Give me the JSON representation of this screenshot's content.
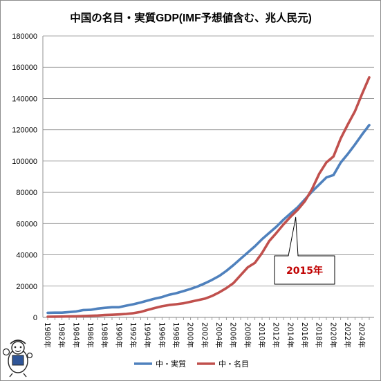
{
  "chart_data": {
    "type": "line",
    "title": "中国の名目・実質GDP(IMF予想値含む、兆人民元)",
    "xlabel": "",
    "ylabel": "",
    "ylim": [
      0,
      180000
    ],
    "yticks": [
      0,
      20000,
      40000,
      60000,
      80000,
      100000,
      120000,
      140000,
      160000,
      180000
    ],
    "ytick_labels": [
      "0",
      "20000",
      "40000",
      "60000",
      "80000",
      "100000",
      "120000",
      "140000",
      "160000",
      "180000"
    ],
    "x": [
      1980,
      1981,
      1982,
      1983,
      1984,
      1985,
      1986,
      1987,
      1988,
      1989,
      1990,
      1991,
      1992,
      1993,
      1994,
      1995,
      1996,
      1997,
      1998,
      1999,
      2000,
      2001,
      2002,
      2003,
      2004,
      2005,
      2006,
      2007,
      2008,
      2009,
      2010,
      2011,
      2012,
      2013,
      2014,
      2015,
      2016,
      2017,
      2018,
      2019,
      2020,
      2021,
      2022,
      2023,
      2024,
      2025
    ],
    "x_tick_labels": [
      "1980年",
      "1982年",
      "1984年",
      "1986年",
      "1988年",
      "1990年",
      "1992年",
      "1994年",
      "1996年",
      "1998年",
      "2000年",
      "2002年",
      "2004年",
      "2006年",
      "2008年",
      "2010年",
      "2012年",
      "2014年",
      "2016年",
      "2018年",
      "2020年",
      "2022年",
      "2024年"
    ],
    "x_tick_years": [
      1980,
      1982,
      1984,
      1986,
      1988,
      1990,
      1992,
      1994,
      1996,
      1998,
      2000,
      2002,
      2004,
      2006,
      2008,
      2010,
      2012,
      2014,
      2016,
      2018,
      2020,
      2022,
      2024
    ],
    "grid": "horizontal",
    "legend": "bottom",
    "series": [
      {
        "name": "中・実質",
        "color": "#4f81bd",
        "values": [
          2900,
          3000,
          3000,
          3400,
          3800,
          4700,
          4800,
          5600,
          6100,
          6500,
          6500,
          7500,
          8400,
          9500,
          10800,
          12000,
          13000,
          14500,
          15500,
          16800,
          18200,
          19800,
          21800,
          24000,
          26500,
          29700,
          33500,
          37500,
          41500,
          45500,
          50000,
          54000,
          58000,
          62500,
          66500,
          70500,
          75500,
          80500,
          85000,
          89500,
          91000,
          99000,
          104500,
          110500,
          117000,
          123000
        ]
      },
      {
        "name": "中・名目",
        "color": "#c0504d",
        "values": [
          450,
          500,
          550,
          600,
          700,
          900,
          1000,
          1200,
          1500,
          1700,
          1900,
          2200,
          2700,
          3500,
          4800,
          6000,
          7100,
          7900,
          8400,
          9000,
          10000,
          11000,
          12000,
          13700,
          16000,
          18700,
          22000,
          27000,
          32000,
          34900,
          41200,
          48800,
          54000,
          59500,
          64400,
          68900,
          74400,
          82100,
          91900,
          99100,
          102900,
          114400,
          123400,
          131800,
          143000,
          153500
        ]
      }
    ],
    "annotations": [
      {
        "text": "2015年",
        "x": 2015,
        "y": 64000
      }
    ]
  }
}
